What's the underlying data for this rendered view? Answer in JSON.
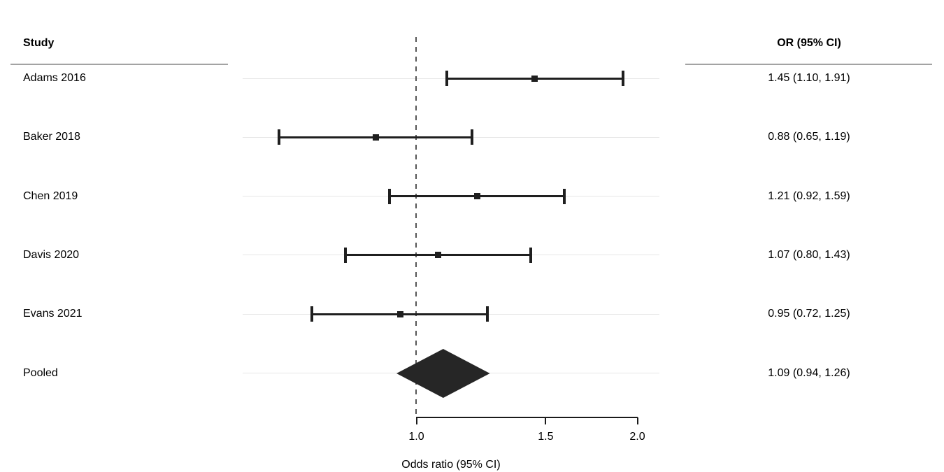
{
  "chart_data": {
    "type": "scatter",
    "subtype": "forest_plot",
    "title": "",
    "columns": {
      "study": "Study",
      "or_ci": "OR (95% CI)"
    },
    "xlabel": "Odds ratio (95% CI)",
    "x_scale": "log",
    "x_axis_range": [
      1.0,
      2.0
    ],
    "x_tick_values": [
      1.0,
      1.5,
      2.0
    ],
    "x_tick_labels": [
      "1.0",
      "1.5",
      "2.0"
    ],
    "reference_line": 1.0,
    "grid": "light-horizontal-row-lines",
    "legend": "none",
    "studies": [
      {
        "study": "Adams 2016",
        "or": 1.45,
        "ci_low": 1.1,
        "ci_high": 1.91,
        "or_ci_label": "1.45 (1.10, 1.91)"
      },
      {
        "study": "Baker 2018",
        "or": 0.88,
        "ci_low": 0.65,
        "ci_high": 1.19,
        "or_ci_label": "0.88 (0.65, 1.19)"
      },
      {
        "study": "Chen 2019",
        "or": 1.21,
        "ci_low": 0.92,
        "ci_high": 1.59,
        "or_ci_label": "1.21 (0.92, 1.59)"
      },
      {
        "study": "Davis 2020",
        "or": 1.07,
        "ci_low": 0.8,
        "ci_high": 1.43,
        "or_ci_label": "1.07 (0.80, 1.43)"
      },
      {
        "study": "Evans 2021",
        "or": 0.95,
        "ci_low": 0.72,
        "ci_high": 1.25,
        "or_ci_label": "0.95 (0.72, 1.25)"
      }
    ],
    "pooled": {
      "study": "Pooled",
      "or": 1.09,
      "ci_low": 0.94,
      "ci_high": 1.26,
      "or_ci_label": "1.09 (0.94, 1.26)"
    },
    "colors": {
      "marks": "#1f1f1f",
      "diamond": "#262626",
      "grid": "#e6e6e6",
      "header_rule": "#a3a3a3",
      "reference_line": "#555555",
      "axis": "#1a1a1a",
      "text": "#000000",
      "background": "#ffffff"
    }
  }
}
